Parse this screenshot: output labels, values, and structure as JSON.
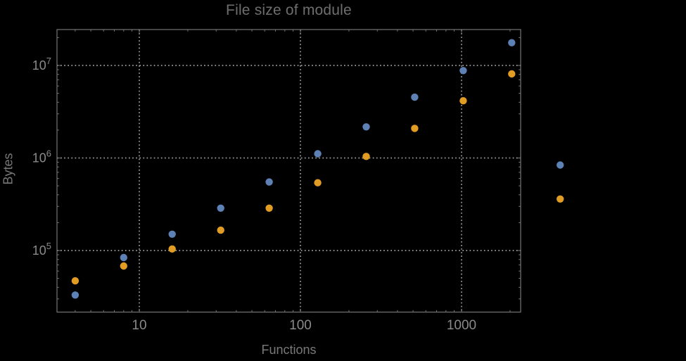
{
  "title": "File size of module",
  "chart_data": {
    "type": "scatter",
    "title": "File size of module",
    "xlabel": "Functions",
    "ylabel": "Bytes",
    "xscale": "log",
    "yscale": "log",
    "xlim": [
      3.1,
      2330
    ],
    "ylim": [
      21600,
      24400000
    ],
    "grid": "dotted gridlines at decades only",
    "legend": "none",
    "x_ticks": [
      10,
      100,
      1000
    ],
    "x_tick_labels": [
      "10",
      "100",
      "1000"
    ],
    "y_tick_exponents": [
      5,
      6,
      7
    ],
    "y_tick_labels": [
      "10^5",
      "10^6",
      "10^7"
    ],
    "note": "last point of each series (x=4096) lies outside the plot frame on the right",
    "series": [
      {
        "name": "series-blue",
        "color": "#5e81b5",
        "points": [
          [
            4,
            33000
          ],
          [
            8,
            84000
          ],
          [
            16,
            150000
          ],
          [
            32,
            287000
          ],
          [
            64,
            550000
          ],
          [
            128,
            1110000
          ],
          [
            256,
            2170000
          ],
          [
            512,
            4540000
          ],
          [
            1024,
            8800000
          ],
          [
            2048,
            17600000
          ],
          [
            4096,
            840000
          ]
        ]
      },
      {
        "name": "series-orange",
        "color": "#e19c24",
        "points": [
          [
            4,
            47000
          ],
          [
            8,
            68000
          ],
          [
            16,
            104000
          ],
          [
            32,
            166000
          ],
          [
            64,
            287000
          ],
          [
            128,
            540000
          ],
          [
            256,
            1040000
          ],
          [
            512,
            2090000
          ],
          [
            1024,
            4150000
          ],
          [
            2048,
            8100000
          ],
          [
            4096,
            360000
          ]
        ]
      }
    ]
  },
  "colors": {
    "background": "#000000",
    "frame": "#757575",
    "gridline": "#9e9e9e",
    "tick_label": "#8a8a8a",
    "title_text": "#6e6e6e",
    "axis_label_text": "#787878"
  }
}
